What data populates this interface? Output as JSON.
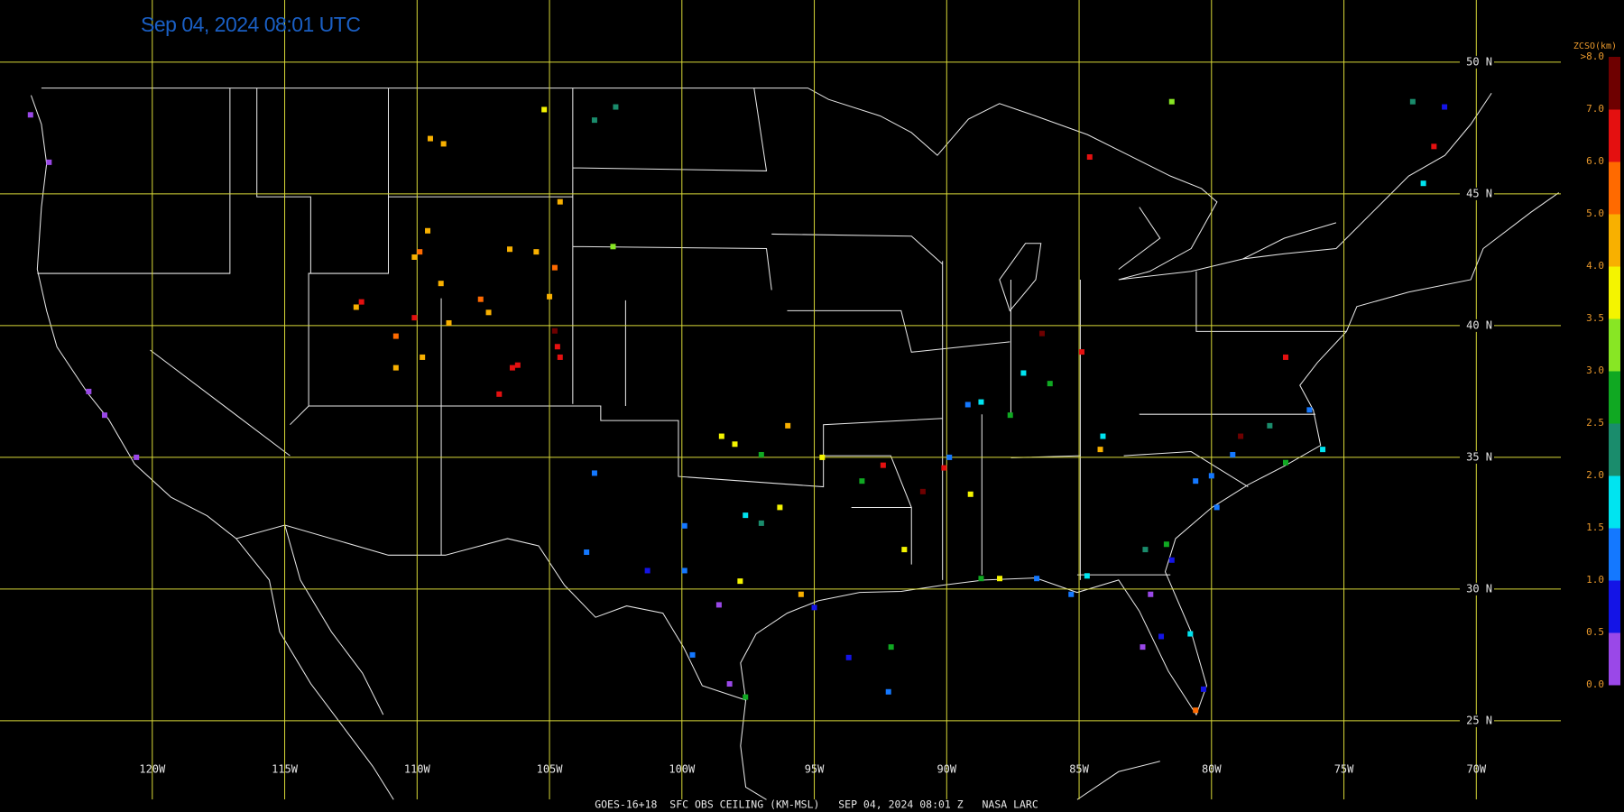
{
  "title": "Sep 04, 2024 08:01 UTC",
  "footer": "GOES-16+18  SFC OBS CEILING (KM-MSL)   SEP 04, 2024 08:01 Z   NASA LARC",
  "map": {
    "lon_ticks": [
      {
        "value": -120,
        "label": "120W"
      },
      {
        "value": -115,
        "label": "115W"
      },
      {
        "value": -110,
        "label": "110W"
      },
      {
        "value": -105,
        "label": "105W"
      },
      {
        "value": -100,
        "label": "100W"
      },
      {
        "value": -95,
        "label": "95W"
      },
      {
        "value": -90,
        "label": "90W"
      },
      {
        "value": -85,
        "label": "85W"
      },
      {
        "value": -80,
        "label": "80W"
      },
      {
        "value": -75,
        "label": "75W"
      },
      {
        "value": -70,
        "label": "70W"
      }
    ],
    "lat_ticks": [
      {
        "value": 50,
        "label": "50 N"
      },
      {
        "value": 45,
        "label": "45 N"
      },
      {
        "value": 40,
        "label": "40 N"
      },
      {
        "value": 35,
        "label": "35 N"
      },
      {
        "value": 30,
        "label": "30 N"
      },
      {
        "value": 25,
        "label": "25 N"
      }
    ],
    "stations": [
      {
        "lon": -105.2,
        "lat": 48.2,
        "value": 3.8
      },
      {
        "lon": -102.5,
        "lat": 48.3,
        "value": 2.3
      },
      {
        "lon": -103.3,
        "lat": 47.8,
        "value": 2.3
      },
      {
        "lon": -109.5,
        "lat": 47.1,
        "value": 4.5
      },
      {
        "lon": -109.0,
        "lat": 46.9,
        "value": 4.5
      },
      {
        "lon": -104.6,
        "lat": 44.7,
        "value": 4.5
      },
      {
        "lon": -109.6,
        "lat": 43.6,
        "value": 4.5
      },
      {
        "lon": -109.9,
        "lat": 42.8,
        "value": 5.5
      },
      {
        "lon": -110.1,
        "lat": 42.6,
        "value": 4.5
      },
      {
        "lon": -106.5,
        "lat": 42.9,
        "value": 4.5
      },
      {
        "lon": -105.5,
        "lat": 42.8,
        "value": 4.5
      },
      {
        "lon": -104.8,
        "lat": 42.2,
        "value": 5.5
      },
      {
        "lon": -102.6,
        "lat": 43.0,
        "value": 3.3
      },
      {
        "lon": -109.1,
        "lat": 41.6,
        "value": 4.5
      },
      {
        "lon": -112.1,
        "lat": 40.9,
        "value": 6.5
      },
      {
        "lon": -112.3,
        "lat": 40.7,
        "value": 4.5
      },
      {
        "lon": -107.6,
        "lat": 41.0,
        "value": 5.5
      },
      {
        "lon": -107.3,
        "lat": 40.5,
        "value": 4.5
      },
      {
        "lon": -108.8,
        "lat": 40.1,
        "value": 4.5
      },
      {
        "lon": -110.1,
        "lat": 40.3,
        "value": 6.5
      },
      {
        "lon": -105.0,
        "lat": 41.1,
        "value": 4.5
      },
      {
        "lon": -110.8,
        "lat": 39.6,
        "value": 5.5
      },
      {
        "lon": -109.8,
        "lat": 38.8,
        "value": 4.5
      },
      {
        "lon": -110.8,
        "lat": 38.4,
        "value": 4.5
      },
      {
        "lon": -104.8,
        "lat": 39.8,
        "value": 7.5
      },
      {
        "lon": -104.7,
        "lat": 39.2,
        "value": 6.5
      },
      {
        "lon": -104.6,
        "lat": 38.8,
        "value": 6.5
      },
      {
        "lon": -106.2,
        "lat": 38.5,
        "value": 6.5
      },
      {
        "lon": -106.4,
        "lat": 38.4,
        "value": 6.5
      },
      {
        "lon": -106.9,
        "lat": 37.4,
        "value": 6.5
      },
      {
        "lon": -81.5,
        "lat": 48.5,
        "value": 3.3
      },
      {
        "lon": -72.4,
        "lat": 48.5,
        "value": 2.3
      },
      {
        "lon": -71.2,
        "lat": 48.3,
        "value": 0.8
      },
      {
        "lon": -71.6,
        "lat": 46.8,
        "value": 6.5
      },
      {
        "lon": -72.0,
        "lat": 45.4,
        "value": 1.8
      },
      {
        "lon": -84.6,
        "lat": 46.4,
        "value": 6.5
      },
      {
        "lon": -124.6,
        "lat": 48.0,
        "value": 0.3
      },
      {
        "lon": -123.9,
        "lat": 46.2,
        "value": 0.3
      },
      {
        "lon": -122.4,
        "lat": 37.5,
        "value": 0.3
      },
      {
        "lon": -121.8,
        "lat": 36.6,
        "value": 0.3
      },
      {
        "lon": -120.6,
        "lat": 35.0,
        "value": 0.3
      },
      {
        "lon": -98.0,
        "lat": 35.5,
        "value": 3.8
      },
      {
        "lon": -98.5,
        "lat": 35.8,
        "value": 3.8
      },
      {
        "lon": -97.0,
        "lat": 35.1,
        "value": 2.8
      },
      {
        "lon": -96.0,
        "lat": 36.2,
        "value": 4.5
      },
      {
        "lon": -94.7,
        "lat": 35.0,
        "value": 3.8
      },
      {
        "lon": -93.2,
        "lat": 34.1,
        "value": 2.8
      },
      {
        "lon": -92.4,
        "lat": 34.7,
        "value": 6.5
      },
      {
        "lon": -91.6,
        "lat": 31.5,
        "value": 3.8
      },
      {
        "lon": -90.9,
        "lat": 33.7,
        "value": 7.5
      },
      {
        "lon": -90.1,
        "lat": 34.6,
        "value": 6.5
      },
      {
        "lon": -97.6,
        "lat": 32.8,
        "value": 1.8
      },
      {
        "lon": -97.0,
        "lat": 32.5,
        "value": 2.3
      },
      {
        "lon": -96.3,
        "lat": 33.1,
        "value": 3.8
      },
      {
        "lon": -97.8,
        "lat": 30.3,
        "value": 3.8
      },
      {
        "lon": -98.6,
        "lat": 29.4,
        "value": 0.3
      },
      {
        "lon": -95.5,
        "lat": 29.8,
        "value": 4.5
      },
      {
        "lon": -95.0,
        "lat": 29.3,
        "value": 0.8
      },
      {
        "lon": -97.6,
        "lat": 25.9,
        "value": 2.8
      },
      {
        "lon": -98.2,
        "lat": 26.4,
        "value": 0.3
      },
      {
        "lon": -99.6,
        "lat": 27.5,
        "value": 1.3
      },
      {
        "lon": -99.9,
        "lat": 30.7,
        "value": 1.3
      },
      {
        "lon": -101.3,
        "lat": 30.7,
        "value": 0.8
      },
      {
        "lon": -103.3,
        "lat": 34.4,
        "value": 1.3
      },
      {
        "lon": -103.6,
        "lat": 31.4,
        "value": 1.3
      },
      {
        "lon": -99.9,
        "lat": 32.4,
        "value": 1.3
      },
      {
        "lon": -89.9,
        "lat": 35.0,
        "value": 1.3
      },
      {
        "lon": -89.2,
        "lat": 37.0,
        "value": 1.3
      },
      {
        "lon": -88.7,
        "lat": 37.1,
        "value": 1.8
      },
      {
        "lon": -87.6,
        "lat": 36.6,
        "value": 2.8
      },
      {
        "lon": -86.1,
        "lat": 37.8,
        "value": 2.8
      },
      {
        "lon": -87.1,
        "lat": 38.2,
        "value": 1.8
      },
      {
        "lon": -86.4,
        "lat": 39.7,
        "value": 7.5
      },
      {
        "lon": -84.9,
        "lat": 39.0,
        "value": 6.5
      },
      {
        "lon": -84.1,
        "lat": 35.8,
        "value": 1.8
      },
      {
        "lon": -84.2,
        "lat": 35.3,
        "value": 4.5
      },
      {
        "lon": -78.9,
        "lat": 35.8,
        "value": 7.5
      },
      {
        "lon": -77.8,
        "lat": 36.2,
        "value": 2.3
      },
      {
        "lon": -77.2,
        "lat": 38.8,
        "value": 6.5
      },
      {
        "lon": -76.3,
        "lat": 36.8,
        "value": 1.3
      },
      {
        "lon": -75.8,
        "lat": 35.3,
        "value": 1.8
      },
      {
        "lon": -77.2,
        "lat": 34.8,
        "value": 2.8
      },
      {
        "lon": -79.2,
        "lat": 35.1,
        "value": 1.3
      },
      {
        "lon": -80.0,
        "lat": 34.3,
        "value": 1.3
      },
      {
        "lon": -80.6,
        "lat": 34.1,
        "value": 1.3
      },
      {
        "lon": -79.8,
        "lat": 33.1,
        "value": 1.3
      },
      {
        "lon": -82.5,
        "lat": 31.5,
        "value": 2.3
      },
      {
        "lon": -81.7,
        "lat": 31.7,
        "value": 2.8
      },
      {
        "lon": -81.5,
        "lat": 31.1,
        "value": 0.8
      },
      {
        "lon": -84.7,
        "lat": 30.5,
        "value": 1.8
      },
      {
        "lon": -85.3,
        "lat": 29.8,
        "value": 1.3
      },
      {
        "lon": -88.7,
        "lat": 30.4,
        "value": 2.8
      },
      {
        "lon": -88.0,
        "lat": 30.4,
        "value": 3.8
      },
      {
        "lon": -86.6,
        "lat": 30.4,
        "value": 1.3
      },
      {
        "lon": -82.3,
        "lat": 29.8,
        "value": 0.3
      },
      {
        "lon": -81.9,
        "lat": 28.2,
        "value": 0.8
      },
      {
        "lon": -80.8,
        "lat": 28.3,
        "value": 1.8
      },
      {
        "lon": -82.6,
        "lat": 27.8,
        "value": 0.3
      },
      {
        "lon": -80.6,
        "lat": 25.4,
        "value": 5.5
      },
      {
        "lon": -80.3,
        "lat": 26.2,
        "value": 0.8
      },
      {
        "lon": -89.1,
        "lat": 33.6,
        "value": 3.8
      },
      {
        "lon": -93.7,
        "lat": 27.4,
        "value": 0.8
      },
      {
        "lon": -92.1,
        "lat": 27.8,
        "value": 2.8
      },
      {
        "lon": -92.2,
        "lat": 26.1,
        "value": 1.3
      }
    ]
  },
  "colorbar": {
    "title": "ZCSO(km)",
    "ticks": [
      {
        "value": 0,
        "label": "0.0"
      },
      0.5,
      {
        "value": 1,
        "label": "1.0"
      },
      1.5,
      {
        "value": 2,
        "label": "2.0"
      },
      2.5,
      {
        "value": 3,
        "label": "3.0"
      },
      3.5,
      {
        "value": 4,
        "label": "4.0"
      },
      {
        "value": 5,
        "label": "5.0"
      },
      {
        "value": 6,
        "label": "6.0"
      },
      {
        "value": 7,
        "label": "7.0"
      },
      {
        "value": 8,
        "label": ">8.0"
      }
    ],
    "colors": [
      "#9a48e8",
      "#1414e6",
      "#1478ff",
      "#00e4f0",
      "#1a8c6c",
      "#10a822",
      "#88e624",
      "#f4f400",
      "#f8b000",
      "#ff6a00",
      "#e41010",
      "#6e0000"
    ]
  }
}
